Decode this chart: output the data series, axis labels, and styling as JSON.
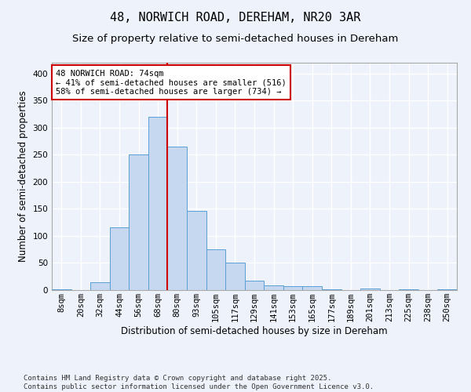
{
  "title1": "48, NORWICH ROAD, DEREHAM, NR20 3AR",
  "title2": "Size of property relative to semi-detached houses in Dereham",
  "xlabel": "Distribution of semi-detached houses by size in Dereham",
  "ylabel": "Number of semi-detached properties",
  "categories": [
    "8sqm",
    "20sqm",
    "32sqm",
    "44sqm",
    "56sqm",
    "68sqm",
    "80sqm",
    "93sqm",
    "105sqm",
    "117sqm",
    "129sqm",
    "141sqm",
    "153sqm",
    "165sqm",
    "177sqm",
    "189sqm",
    "201sqm",
    "213sqm",
    "225sqm",
    "238sqm",
    "250sqm"
  ],
  "values": [
    2,
    0,
    15,
    116,
    251,
    320,
    265,
    147,
    75,
    50,
    18,
    9,
    7,
    7,
    1,
    0,
    3,
    0,
    2,
    0,
    2
  ],
  "bar_color": "#c5d8f0",
  "bar_edge_color": "#5a9fd4",
  "vline_color": "#cc0000",
  "annotation_text": "48 NORWICH ROAD: 74sqm\n← 41% of semi-detached houses are smaller (516)\n58% of semi-detached houses are larger (734) →",
  "annotation_box_color": "#ffffff",
  "annotation_box_edge": "#cc0000",
  "ylim": [
    0,
    420
  ],
  "yticks": [
    0,
    50,
    100,
    150,
    200,
    250,
    300,
    350,
    400
  ],
  "footer_text": "Contains HM Land Registry data © Crown copyright and database right 2025.\nContains public sector information licensed under the Open Government Licence v3.0.",
  "background_color": "#eef2fa",
  "plot_bg_color": "#eef2fa",
  "grid_color": "#ffffff",
  "title_fontsize": 11,
  "subtitle_fontsize": 9.5,
  "axis_fontsize": 8.5,
  "tick_fontsize": 7.5,
  "footer_fontsize": 6.5
}
